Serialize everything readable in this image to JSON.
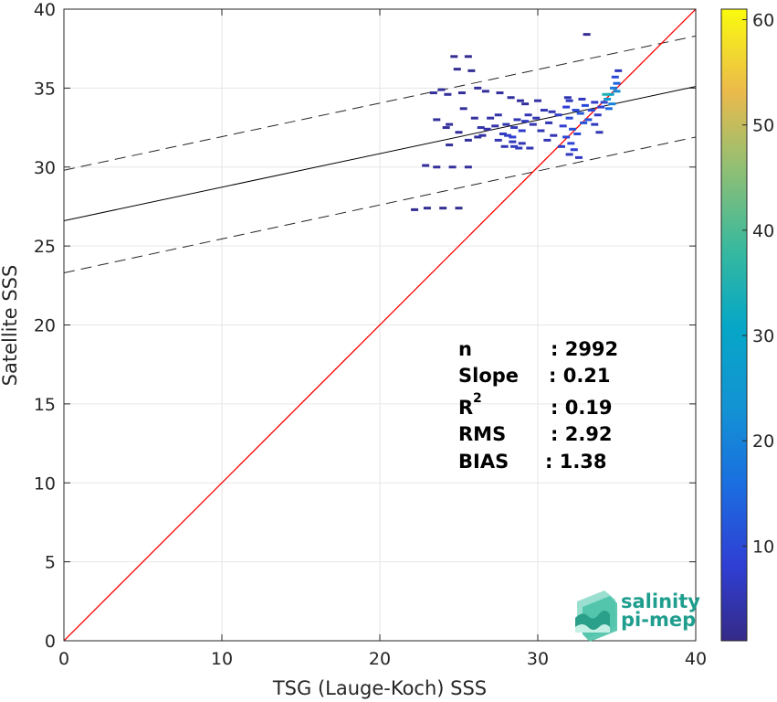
{
  "chart_data": {
    "type": "scatter",
    "title": "",
    "xlabel": "TSG (Lauge-Koch) SSS",
    "ylabel": "Satellite SSS",
    "xlim": [
      0,
      40
    ],
    "ylim": [
      0,
      40
    ],
    "xticks": [
      "0",
      "10",
      "20",
      "30",
      "40"
    ],
    "yticks": [
      "0",
      "5",
      "10",
      "15",
      "20",
      "25",
      "30",
      "35",
      "40"
    ],
    "grid": true,
    "identity_line": {
      "x": [
        0,
        40
      ],
      "y": [
        0,
        40
      ],
      "color": "#ff0000"
    },
    "regression_line": {
      "x": [
        0,
        40
      ],
      "y": [
        26.6,
        35.1
      ],
      "color": "#000000"
    },
    "confidence_lines": [
      {
        "x": [
          0,
          40
        ],
        "y": [
          29.8,
          38.3
        ]
      },
      {
        "x": [
          0,
          40
        ],
        "y": [
          23.3,
          31.9
        ]
      }
    ],
    "colorbar": {
      "range": [
        1,
        61
      ],
      "ticks": [
        "10",
        "20",
        "30",
        "40",
        "50",
        "60"
      ],
      "colormap": "parula"
    },
    "density_points": [
      {
        "x": 22.2,
        "y": 27.3,
        "c": 2
      },
      {
        "x": 23.0,
        "y": 27.4,
        "c": 2
      },
      {
        "x": 24.0,
        "y": 27.4,
        "c": 2
      },
      {
        "x": 25.0,
        "y": 27.4,
        "c": 2
      },
      {
        "x": 22.9,
        "y": 30.1,
        "c": 3
      },
      {
        "x": 23.6,
        "y": 30.0,
        "c": 3
      },
      {
        "x": 24.6,
        "y": 30.0,
        "c": 3
      },
      {
        "x": 25.6,
        "y": 30.0,
        "c": 3
      },
      {
        "x": 23.4,
        "y": 34.7,
        "c": 3
      },
      {
        "x": 24.3,
        "y": 34.6,
        "c": 3
      },
      {
        "x": 23.9,
        "y": 34.9,
        "c": 3
      },
      {
        "x": 25.2,
        "y": 34.7,
        "c": 3
      },
      {
        "x": 24.7,
        "y": 37.0,
        "c": 2
      },
      {
        "x": 25.6,
        "y": 37.0,
        "c": 2
      },
      {
        "x": 24.9,
        "y": 36.2,
        "c": 2
      },
      {
        "x": 25.8,
        "y": 36.1,
        "c": 2
      },
      {
        "x": 26.2,
        "y": 35.0,
        "c": 3
      },
      {
        "x": 26.7,
        "y": 34.8,
        "c": 3
      },
      {
        "x": 27.6,
        "y": 34.7,
        "c": 3
      },
      {
        "x": 28.3,
        "y": 34.4,
        "c": 3
      },
      {
        "x": 28.9,
        "y": 34.2,
        "c": 3
      },
      {
        "x": 29.2,
        "y": 34.0,
        "c": 3
      },
      {
        "x": 24.4,
        "y": 32.7,
        "c": 3
      },
      {
        "x": 25.0,
        "y": 32.2,
        "c": 3
      },
      {
        "x": 23.6,
        "y": 33.0,
        "c": 3
      },
      {
        "x": 24.2,
        "y": 32.5,
        "c": 3
      },
      {
        "x": 25.6,
        "y": 31.7,
        "c": 3
      },
      {
        "x": 24.4,
        "y": 31.4,
        "c": 3
      },
      {
        "x": 26.4,
        "y": 32.5,
        "c": 4
      },
      {
        "x": 26.8,
        "y": 32.4,
        "c": 4
      },
      {
        "x": 27.3,
        "y": 32.6,
        "c": 4
      },
      {
        "x": 27.0,
        "y": 33.1,
        "c": 4
      },
      {
        "x": 27.5,
        "y": 33.3,
        "c": 4
      },
      {
        "x": 26.5,
        "y": 32.0,
        "c": 4
      },
      {
        "x": 27.8,
        "y": 32.1,
        "c": 6
      },
      {
        "x": 28.1,
        "y": 32.0,
        "c": 7
      },
      {
        "x": 28.4,
        "y": 31.9,
        "c": 8
      },
      {
        "x": 28.0,
        "y": 32.7,
        "c": 5
      },
      {
        "x": 28.5,
        "y": 32.5,
        "c": 6
      },
      {
        "x": 28.7,
        "y": 33.0,
        "c": 5
      },
      {
        "x": 29.0,
        "y": 32.3,
        "c": 7
      },
      {
        "x": 29.2,
        "y": 32.9,
        "c": 6
      },
      {
        "x": 29.4,
        "y": 33.3,
        "c": 5
      },
      {
        "x": 29.7,
        "y": 32.7,
        "c": 5
      },
      {
        "x": 29.9,
        "y": 33.1,
        "c": 5
      },
      {
        "x": 28.4,
        "y": 31.6,
        "c": 6
      },
      {
        "x": 29.0,
        "y": 31.5,
        "c": 5
      },
      {
        "x": 27.5,
        "y": 31.7,
        "c": 5
      },
      {
        "x": 27.9,
        "y": 31.3,
        "c": 5
      },
      {
        "x": 28.5,
        "y": 31.3,
        "c": 6
      },
      {
        "x": 28.8,
        "y": 31.2,
        "c": 6
      },
      {
        "x": 29.5,
        "y": 31.2,
        "c": 5
      },
      {
        "x": 30.2,
        "y": 32.3,
        "c": 5
      },
      {
        "x": 30.4,
        "y": 33.6,
        "c": 5
      },
      {
        "x": 30.7,
        "y": 32.8,
        "c": 5
      },
      {
        "x": 30.9,
        "y": 33.5,
        "c": 5
      },
      {
        "x": 31.0,
        "y": 32.0,
        "c": 5
      },
      {
        "x": 30.6,
        "y": 31.7,
        "c": 5
      },
      {
        "x": 31.3,
        "y": 33.3,
        "c": 7
      },
      {
        "x": 31.6,
        "y": 32.6,
        "c": 8
      },
      {
        "x": 31.8,
        "y": 33.8,
        "c": 8
      },
      {
        "x": 32.0,
        "y": 33.1,
        "c": 10
      },
      {
        "x": 32.2,
        "y": 32.4,
        "c": 11
      },
      {
        "x": 32.4,
        "y": 33.6,
        "c": 10
      },
      {
        "x": 32.5,
        "y": 32.1,
        "c": 10
      },
      {
        "x": 32.7,
        "y": 33.4,
        "c": 12
      },
      {
        "x": 32.9,
        "y": 32.8,
        "c": 12
      },
      {
        "x": 33.0,
        "y": 33.9,
        "c": 10
      },
      {
        "x": 33.2,
        "y": 33.0,
        "c": 11
      },
      {
        "x": 33.4,
        "y": 33.6,
        "c": 10
      },
      {
        "x": 32.1,
        "y": 31.5,
        "c": 9
      },
      {
        "x": 32.3,
        "y": 31.1,
        "c": 8
      },
      {
        "x": 32.6,
        "y": 30.6,
        "c": 7
      },
      {
        "x": 32.0,
        "y": 30.8,
        "c": 6
      },
      {
        "x": 31.8,
        "y": 31.9,
        "c": 9
      },
      {
        "x": 31.5,
        "y": 31.3,
        "c": 7
      },
      {
        "x": 32.0,
        "y": 34.2,
        "c": 6
      },
      {
        "x": 32.8,
        "y": 34.3,
        "c": 6
      },
      {
        "x": 33.6,
        "y": 34.1,
        "c": 7
      },
      {
        "x": 33.8,
        "y": 33.3,
        "c": 7
      },
      {
        "x": 34.0,
        "y": 33.8,
        "c": 8
      },
      {
        "x": 33.6,
        "y": 32.7,
        "c": 6
      },
      {
        "x": 33.9,
        "y": 32.2,
        "c": 5
      },
      {
        "x": 34.2,
        "y": 34.1,
        "c": 10
      },
      {
        "x": 34.4,
        "y": 34.3,
        "c": 25
      },
      {
        "x": 34.6,
        "y": 34.6,
        "c": 30
      },
      {
        "x": 34.8,
        "y": 35.0,
        "c": 18
      },
      {
        "x": 35.0,
        "y": 35.3,
        "c": 14
      },
      {
        "x": 34.9,
        "y": 35.7,
        "c": 10
      },
      {
        "x": 35.1,
        "y": 36.1,
        "c": 6
      },
      {
        "x": 34.7,
        "y": 34.0,
        "c": 20
      },
      {
        "x": 34.5,
        "y": 33.7,
        "c": 15
      },
      {
        "x": 35.0,
        "y": 34.8,
        "c": 22
      },
      {
        "x": 34.3,
        "y": 34.6,
        "c": 35
      },
      {
        "x": 33.1,
        "y": 38.4,
        "c": 2
      },
      {
        "x": 31.9,
        "y": 34.4,
        "c": 5
      },
      {
        "x": 30.0,
        "y": 34.2,
        "c": 4
      },
      {
        "x": 26.0,
        "y": 33.1,
        "c": 3
      },
      {
        "x": 26.2,
        "y": 31.9,
        "c": 3
      },
      {
        "x": 25.3,
        "y": 33.7,
        "c": 3
      }
    ]
  },
  "stats": [
    {
      "label": "n",
      "sup": "",
      "value": ": 2992"
    },
    {
      "label": "Slope",
      "sup": "",
      "value": ": 0.21"
    },
    {
      "label": "R",
      "sup": "2",
      "value": ": 0.19"
    },
    {
      "label": "RMS",
      "sup": "",
      "value": ": 2.92"
    },
    {
      "label": "BIAS",
      "sup": "",
      "value": ": 1.38"
    }
  ],
  "logo": {
    "line1": "salinity",
    "line2": "pi-mep"
  }
}
